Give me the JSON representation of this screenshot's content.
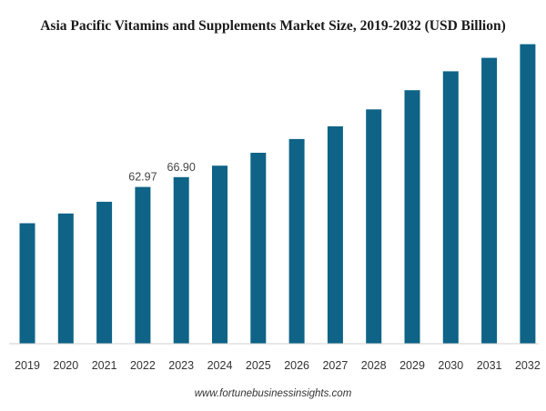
{
  "source": "www.fortunebusinessinsights.com",
  "chart_data": {
    "type": "bar",
    "title": "Asia Pacific Vitamins and Supplements Market Size, 2019-2032 (USD Billion)",
    "xlabel": "",
    "ylabel": "",
    "categories": [
      "2019",
      "2020",
      "2021",
      "2022",
      "2023",
      "2024",
      "2025",
      "2026",
      "2027",
      "2028",
      "2029",
      "2030",
      "2031",
      "2032"
    ],
    "values": [
      48.4,
      52.3,
      57.0,
      62.97,
      66.9,
      71.5,
      76.7,
      82.2,
      87.3,
      94.1,
      101.8,
      109.4,
      114.8,
      120.3
    ],
    "data_labels": {
      "3": "62.97",
      "4": "66.90"
    },
    "ylim": [
      0,
      130
    ],
    "bar_color": "#0e6387",
    "axis_color": "#d0d0d0",
    "grid": false,
    "legend": "none"
  }
}
